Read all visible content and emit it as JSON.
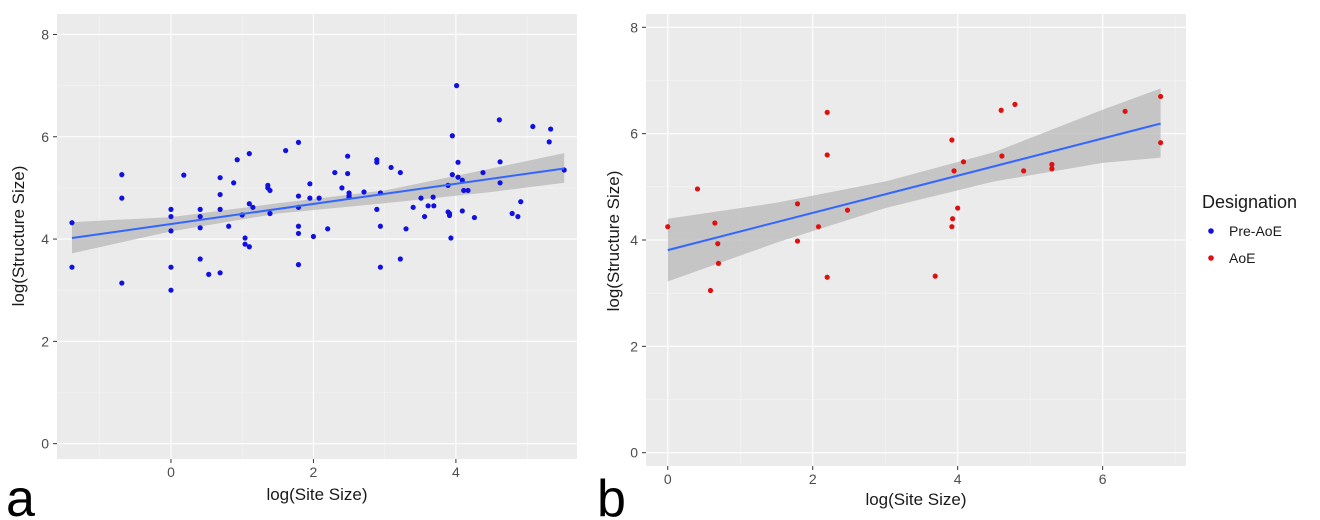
{
  "chart_data": [
    {
      "type": "scatter",
      "panel_label": "a",
      "xlabel": "log(Site Size)",
      "ylabel": "log(Structure Size)",
      "xlim": [
        -1.6,
        5.7
      ],
      "ylim": [
        -0.3,
        8.4
      ],
      "xticks": [
        0,
        2,
        4
      ],
      "yticks": [
        0,
        2,
        4,
        6,
        8
      ],
      "grid": true,
      "series": [
        {
          "name": "Pre-AoE",
          "color": "#1010e0",
          "x": [
            -1.39,
            -1.39,
            -0.69,
            -0.69,
            -0.69,
            0,
            0,
            0,
            0,
            0,
            0.18,
            0.41,
            0.41,
            0.41,
            0.41,
            0.53,
            0.69,
            0.69,
            0.69,
            0.69,
            0.81,
            0.88,
            0.93,
            1.0,
            1.04,
            1.04,
            1.1,
            1.1,
            1.1,
            1.15,
            1.36,
            1.36,
            1.39,
            1.39,
            1.61,
            1.79,
            1.79,
            1.79,
            1.79,
            1.79,
            1.79,
            1.95,
            1.95,
            2.0,
            2.08,
            2.2,
            2.3,
            2.4,
            2.48,
            2.48,
            2.5,
            2.5,
            2.5,
            2.71,
            2.89,
            2.89,
            2.89,
            2.94,
            2.94,
            2.94,
            3.09,
            3.22,
            3.22,
            3.3,
            3.4,
            3.51,
            3.56,
            3.61,
            3.68,
            3.69,
            3.89,
            3.89,
            3.91,
            3.91,
            3.93,
            3.95,
            3.95,
            4.01,
            4.03,
            4.03,
            4.09,
            4.09,
            4.11,
            4.17,
            4.26,
            4.38,
            4.61,
            4.62,
            4.62,
            4.79,
            4.87,
            4.91,
            5.08,
            5.31,
            5.33,
            5.52
          ],
          "y": [
            4.32,
            3.45,
            5.26,
            4.8,
            3.14,
            4.58,
            4.44,
            4.16,
            3.45,
            3.0,
            5.25,
            4.58,
            4.44,
            4.22,
            3.61,
            3.31,
            5.2,
            4.87,
            4.58,
            3.34,
            4.25,
            5.1,
            5.55,
            4.47,
            4.02,
            3.9,
            5.67,
            4.69,
            3.85,
            4.62,
            5.0,
            5.05,
            4.5,
            4.95,
            5.73,
            5.89,
            4.84,
            4.62,
            4.25,
            4.11,
            3.5,
            5.08,
            4.8,
            4.05,
            4.8,
            4.2,
            5.3,
            5.0,
            5.62,
            5.28,
            4.9,
            4.82,
            4.85,
            4.92,
            5.55,
            5.5,
            4.58,
            4.9,
            4.25,
            3.45,
            5.4,
            5.3,
            3.61,
            4.2,
            4.62,
            4.8,
            4.44,
            4.65,
            4.82,
            4.65,
            5.05,
            4.53,
            4.46,
            4.5,
            4.02,
            6.02,
            5.26,
            7.0,
            5.5,
            5.21,
            5.15,
            4.55,
            4.95,
            4.95,
            4.42,
            5.3,
            6.33,
            5.51,
            5.1,
            4.5,
            4.44,
            4.73,
            6.2,
            5.9,
            6.15,
            5.35
          ]
        }
      ],
      "fit": {
        "x": [
          -1.39,
          5.52
        ],
        "y": [
          4.02,
          5.38
        ]
      },
      "band": {
        "x": [
          -1.39,
          0,
          1.5,
          3,
          4.5,
          5.52
        ],
        "lower": [
          3.72,
          4.15,
          4.5,
          4.7,
          4.92,
          5.1
        ],
        "upper": [
          4.33,
          4.43,
          4.7,
          4.95,
          5.38,
          5.68
        ]
      }
    },
    {
      "type": "scatter",
      "panel_label": "b",
      "xlabel": "log(Site Size)",
      "ylabel": "log(Structure Size)",
      "xlim": [
        -0.3,
        7.15
      ],
      "ylim": [
        -0.25,
        8.25
      ],
      "xticks": [
        0,
        2,
        4,
        6
      ],
      "yticks": [
        0,
        2,
        4,
        6,
        8
      ],
      "grid": true,
      "series": [
        {
          "name": "AoE",
          "color": "#e01010",
          "x": [
            0,
            0.41,
            0.59,
            0.65,
            0.69,
            0.7,
            1.79,
            1.79,
            2.08,
            2.2,
            2.2,
            2.2,
            2.48,
            3.69,
            3.92,
            3.92,
            3.93,
            3.95,
            4.0,
            4.08,
            4.6,
            4.61,
            4.79,
            4.91,
            5.3,
            5.3,
            6.31,
            6.8,
            6.8
          ],
          "y": [
            4.25,
            4.96,
            3.05,
            4.32,
            3.93,
            3.56,
            4.68,
            3.98,
            4.25,
            6.4,
            5.6,
            3.3,
            4.56,
            3.32,
            5.88,
            4.25,
            4.4,
            5.3,
            4.6,
            5.47,
            6.44,
            5.58,
            6.55,
            5.3,
            5.34,
            5.42,
            6.42,
            6.7,
            5.83
          ]
        }
      ],
      "fit": {
        "x": [
          0,
          6.8
        ],
        "y": [
          3.81,
          6.19
        ]
      },
      "band": {
        "x": [
          0,
          1.5,
          3,
          4.5,
          6,
          6.8
        ],
        "lower": [
          3.22,
          3.95,
          4.6,
          5.1,
          5.45,
          5.55
        ],
        "upper": [
          4.4,
          4.7,
          5.1,
          5.65,
          6.45,
          6.85
        ]
      }
    }
  ],
  "legend": {
    "title": "Designation",
    "items": [
      {
        "label": "Pre-AoE",
        "color": "#1010e0"
      },
      {
        "label": "AoE",
        "color": "#e01010"
      }
    ]
  },
  "fit_line_color": "#3366ff",
  "band_color": "#b8b8b8"
}
